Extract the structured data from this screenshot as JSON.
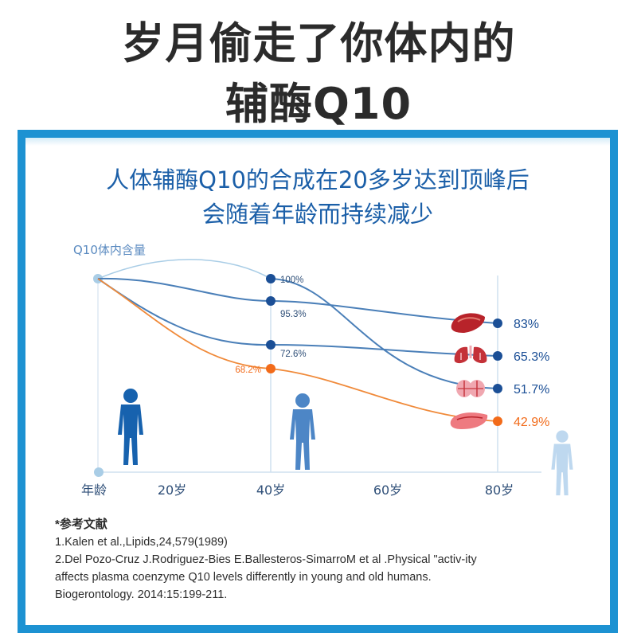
{
  "headline": {
    "line1": "岁月偷走了你体内的",
    "line2": "辅酶Q10"
  },
  "chart_title": {
    "line1": "人体辅酶Q10的合成在20多岁达到顶峰后",
    "line2": "会随着年龄而持续减少"
  },
  "colors": {
    "frame": "#1d92d2",
    "blue_line": "#4a7fb8",
    "light_line": "#a9cde6",
    "orange_line": "#f08a3a",
    "dark_blue": "#1b4f96",
    "orange": "#f26b1a",
    "figure_dark": "#1762ae",
    "figure_mid": "#4d86c6",
    "figure_light": "#bed8ef"
  },
  "chart_data": {
    "type": "line",
    "ylabel": "Q10体内含量",
    "xlabel": "年龄",
    "x_ticks": [
      "20岁",
      "40岁",
      "60岁",
      "80岁"
    ],
    "series": [
      {
        "icon": "heart-icon",
        "points": [
          {
            "age": 40,
            "value": 100,
            "label": "100%"
          },
          {
            "age": 80,
            "value": 51.7,
            "label": "51.7%"
          }
        ]
      },
      {
        "icon": "liver-icon",
        "points": [
          {
            "age": 40,
            "value": 95.3,
            "label": "95.3%"
          },
          {
            "age": 80,
            "value": 83,
            "label": "83%"
          }
        ]
      },
      {
        "icon": "lungs-icon",
        "points": [
          {
            "age": 40,
            "value": 72.6,
            "label": "72.6%"
          },
          {
            "age": 80,
            "value": 65.3,
            "label": "65.3%"
          }
        ]
      },
      {
        "icon": "pancreas-icon",
        "points": [
          {
            "age": 40,
            "value": 68.2,
            "label": "68.2%"
          },
          {
            "age": 80,
            "value": 42.9,
            "label": "42.9%"
          }
        ]
      }
    ]
  },
  "references": {
    "heading": "*参考文献",
    "lines": [
      "1.Kalen et al.,Lipids,24,579(1989)",
      "2.Del Pozo-Cruz J.Rodriguez-Bies E.Ballesteros-SimarroM et al .Physical \"activ-ity",
      "affects plasma coenzyme Q10 levels differently in young and old humans.",
      "Biogerontology. 2014:15:199-211."
    ]
  }
}
